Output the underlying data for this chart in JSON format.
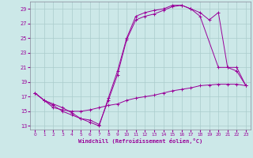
{
  "xlabel": "Windchill (Refroidissement éolien,°C)",
  "background_color": "#cce8e8",
  "grid_color": "#aacccc",
  "line_color": "#990099",
  "xlim": [
    -0.5,
    23.5
  ],
  "ylim": [
    12.5,
    30.0
  ],
  "xticks": [
    0,
    1,
    2,
    3,
    4,
    5,
    6,
    7,
    8,
    9,
    10,
    11,
    12,
    13,
    14,
    15,
    16,
    17,
    18,
    19,
    20,
    21,
    22,
    23
  ],
  "yticks": [
    13,
    15,
    17,
    19,
    21,
    23,
    25,
    27,
    29
  ],
  "line1_x": [
    0,
    1,
    2,
    3,
    4,
    5,
    6,
    7,
    8,
    9,
    10,
    11,
    12,
    13,
    14,
    15,
    16,
    17,
    18,
    19,
    20,
    21,
    22,
    23
  ],
  "line1_y": [
    17.5,
    16.5,
    15.5,
    15.2,
    15.0,
    15.0,
    15.2,
    15.5,
    15.8,
    16.0,
    16.5,
    16.8,
    17.0,
    17.2,
    17.5,
    17.8,
    18.0,
    18.2,
    18.5,
    18.6,
    18.7,
    18.7,
    18.7,
    18.5
  ],
  "line2_x": [
    0,
    1,
    2,
    3,
    4,
    5,
    6,
    7,
    8,
    9,
    10,
    11,
    12,
    13,
    14,
    15,
    16,
    17,
    18,
    20,
    21,
    22,
    23
  ],
  "line2_y": [
    17.5,
    16.5,
    16.0,
    15.5,
    14.8,
    14.0,
    13.8,
    13.2,
    16.5,
    20.0,
    24.8,
    27.5,
    28.0,
    28.3,
    28.8,
    29.3,
    29.5,
    29.0,
    28.0,
    21.0,
    21.0,
    20.5,
    18.5
  ],
  "line3_x": [
    0,
    1,
    2,
    3,
    4,
    5,
    6,
    7,
    8,
    9,
    10,
    11,
    12,
    13,
    14,
    15,
    16,
    17,
    18,
    19,
    20,
    21,
    22,
    23
  ],
  "line3_y": [
    17.5,
    16.5,
    15.8,
    15.0,
    14.5,
    14.0,
    13.5,
    13.0,
    16.8,
    20.5,
    25.0,
    28.0,
    28.5,
    28.8,
    29.0,
    29.5,
    29.5,
    29.0,
    28.5,
    27.5,
    28.5,
    21.0,
    21.0,
    18.5
  ]
}
